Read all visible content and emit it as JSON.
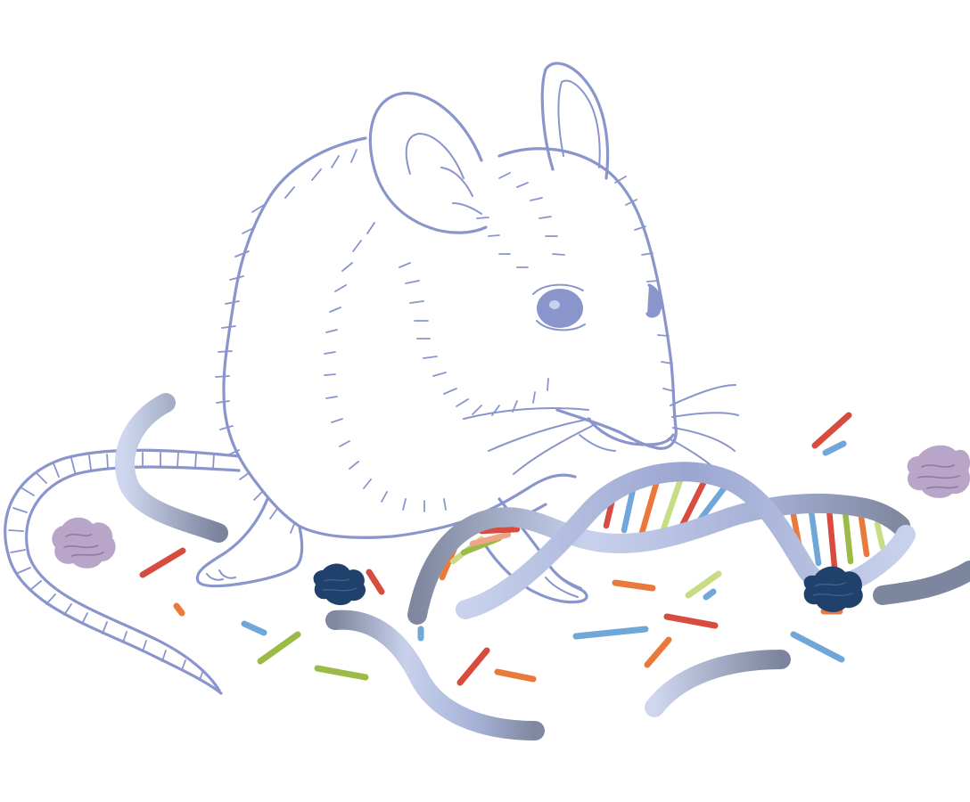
{
  "palette": {
    "line": "#8a95cc",
    "strand_light": "#c9d2ec",
    "strand_mid": "#a5b1da",
    "strand_dark": "#7d869f",
    "protein_dark": "#1f416b",
    "protein_light": "#b9a5c7",
    "red": "#d84b3f",
    "orange": "#ea7a3c",
    "green": "#9bbb47",
    "lime": "#c8dc86",
    "blue": "#6ea7d8",
    "salmon": "#f0a487"
  },
  "subjects": {
    "animal": "mouse-line-drawing",
    "molecule": "dna-double-helix",
    "fragments": "nucleotide-fragments",
    "proteins": "protein-clusters"
  }
}
